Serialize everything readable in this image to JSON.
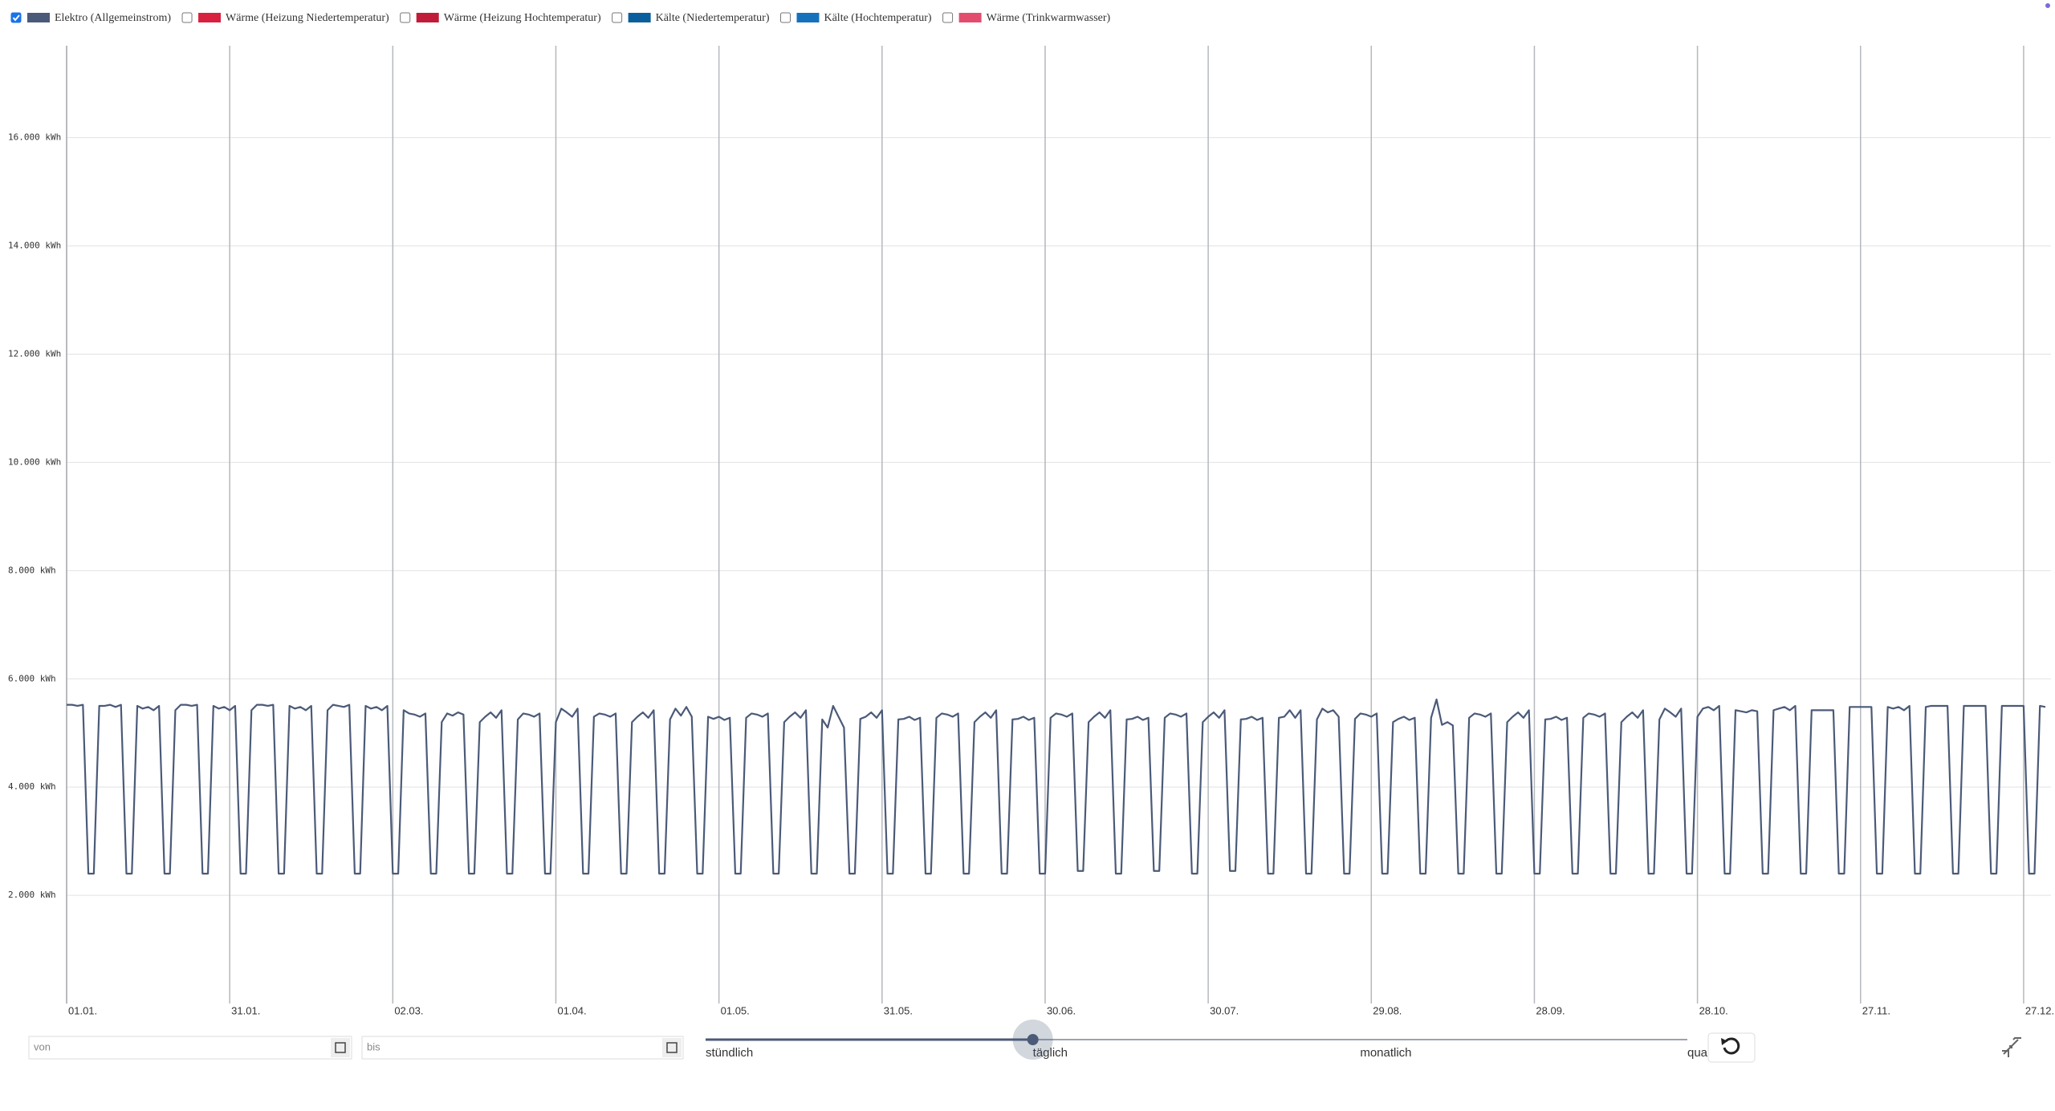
{
  "chart_data": {
    "type": "line",
    "series": [
      {
        "name": "Elektro (Allgemeinstrom)",
        "color": "#4b5a78",
        "checked": true,
        "values": [
          5520,
          5520,
          5500,
          5520,
          2400,
          2400,
          5500,
          5500,
          5520,
          5480,
          5520,
          2400,
          2400,
          5500,
          5450,
          5480,
          5420,
          5500,
          2400,
          2400,
          5420,
          5520,
          5520,
          5500,
          5520,
          2400,
          2400,
          5500,
          5450,
          5480,
          5420,
          5500,
          2400,
          2400,
          5420,
          5520,
          5520,
          5500,
          5520,
          2400,
          2400,
          5500,
          5450,
          5480,
          5420,
          5500,
          2400,
          2400,
          5420,
          5520,
          5500,
          5480,
          5520,
          2400,
          2400,
          5500,
          5450,
          5480,
          5420,
          5500,
          2400,
          2400,
          5420,
          5360,
          5340,
          5300,
          5360,
          2400,
          2400,
          5200,
          5360,
          5320,
          5380,
          5340,
          2400,
          2400,
          5200,
          5300,
          5380,
          5280,
          5420,
          2400,
          2400,
          5250,
          5360,
          5340,
          5300,
          5360,
          2400,
          2400,
          5200,
          5450,
          5380,
          5300,
          5450,
          2400,
          2400,
          5300,
          5360,
          5340,
          5300,
          5360,
          2400,
          2400,
          5200,
          5300,
          5380,
          5280,
          5420,
          2400,
          2400,
          5250,
          5450,
          5320,
          5480,
          5300,
          2400,
          2400,
          5300,
          5260,
          5300,
          5240,
          5280,
          2400,
          2400,
          5280,
          5360,
          5340,
          5300,
          5360,
          2400,
          2400,
          5200,
          5300,
          5380,
          5280,
          5420,
          2400,
          2400,
          5250,
          5100,
          5500,
          5300,
          5100,
          2400,
          2400,
          5260,
          5300,
          5380,
          5280,
          5420,
          2400,
          2400,
          5250,
          5260,
          5300,
          5240,
          5280,
          2400,
          2400,
          5280,
          5360,
          5340,
          5300,
          5360,
          2400,
          2400,
          5200,
          5300,
          5380,
          5280,
          5420,
          2400,
          2400,
          5250,
          5260,
          5300,
          5240,
          5280,
          2400,
          2400,
          5280,
          5360,
          5340,
          5300,
          5360,
          2450,
          2450,
          5200,
          5300,
          5380,
          5280,
          5420,
          2400,
          2400,
          5250,
          5260,
          5300,
          5240,
          5280,
          2450,
          2450,
          5280,
          5360,
          5340,
          5300,
          5360,
          2400,
          2400,
          5200,
          5300,
          5380,
          5280,
          5420,
          2450,
          2450,
          5250,
          5260,
          5300,
          5240,
          5280,
          2400,
          2400,
          5280,
          5300,
          5420,
          5280,
          5420,
          2400,
          2400,
          5250,
          5450,
          5380,
          5420,
          5300,
          2400,
          2400,
          5260,
          5360,
          5340,
          5300,
          5360,
          2400,
          2400,
          5200,
          5260,
          5300,
          5240,
          5280,
          2400,
          2400,
          5280,
          5620,
          5150,
          5200,
          5140,
          2400,
          2400,
          5280,
          5360,
          5340,
          5300,
          5360,
          2400,
          2400,
          5200,
          5300,
          5380,
          5280,
          5420,
          2400,
          2400,
          5250,
          5260,
          5300,
          5240,
          5280,
          2400,
          2400,
          5280,
          5360,
          5340,
          5300,
          5360,
          2400,
          2400,
          5200,
          5300,
          5380,
          5280,
          5420,
          2400,
          2400,
          5250,
          5450,
          5380,
          5300,
          5450,
          2400,
          2400,
          5300,
          5450,
          5480,
          5420,
          5500,
          2400,
          2400,
          5420,
          5400,
          5380,
          5420,
          5400,
          2400,
          2400,
          5420,
          5450,
          5480,
          5420,
          5500,
          2400,
          2400,
          5420,
          5420,
          5420,
          5420,
          5420,
          2400,
          2400,
          5480,
          5480,
          5480,
          5480,
          5480,
          2400,
          2400,
          5480,
          5450,
          5480,
          5420,
          5500,
          2400,
          2400,
          5480,
          5500,
          5500,
          5500,
          5500,
          2400,
          2400,
          5500,
          5500,
          5500,
          5500,
          5500,
          2400,
          2400,
          5500,
          5500,
          5500,
          5500,
          5500,
          2400,
          2400,
          5500,
          5480
        ]
      },
      {
        "name": "Wärme (Heizung Niedertemperatur)",
        "color": "#d7213f",
        "checked": false
      },
      {
        "name": "Wärme (Heizung Hochtemperatur)",
        "color": "#c01c3a",
        "checked": false
      },
      {
        "name": "Kälte (Niedertemperatur)",
        "color": "#0b5e9c",
        "checked": false
      },
      {
        "name": "Kälte (Hochtemperatur)",
        "color": "#1671bd",
        "checked": false
      },
      {
        "name": "Wärme (Trinkwarmwasser)",
        "color": "#e34d6d",
        "checked": false
      }
    ],
    "xlim": [
      0,
      364
    ],
    "xticks": [
      {
        "value": 0,
        "label": "01.01."
      },
      {
        "value": 30,
        "label": "31.01."
      },
      {
        "value": 60,
        "label": "02.03."
      },
      {
        "value": 90,
        "label": "01.04."
      },
      {
        "value": 120,
        "label": "01.05."
      },
      {
        "value": 150,
        "label": "31.05."
      },
      {
        "value": 180,
        "label": "30.06."
      },
      {
        "value": 210,
        "label": "30.07."
      },
      {
        "value": 240,
        "label": "29.08."
      },
      {
        "value": 270,
        "label": "28.09."
      },
      {
        "value": 300,
        "label": "28.10."
      },
      {
        "value": 330,
        "label": "27.11."
      },
      {
        "value": 360,
        "label": "27.12."
      }
    ],
    "ylim": [
      0,
      17700
    ],
    "yticks": [
      {
        "value": 2000,
        "label": "2.000 kWh"
      },
      {
        "value": 4000,
        "label": "4.000 kWh"
      },
      {
        "value": 6000,
        "label": "6.000 kWh"
      },
      {
        "value": 8000,
        "label": "8.000 kWh"
      },
      {
        "value": 10000,
        "label": "10.000 kWh"
      },
      {
        "value": 12000,
        "label": "12.000 kWh"
      },
      {
        "value": 14000,
        "label": "14.000 kWh"
      },
      {
        "value": 16000,
        "label": "16.000 kWh"
      }
    ],
    "grid": true
  },
  "controls": {
    "from_placeholder": "von",
    "to_placeholder": "bis",
    "resolutions": [
      "stündlich",
      "täglich",
      "monatlich",
      "quar"
    ],
    "selected_resolution": 1
  }
}
